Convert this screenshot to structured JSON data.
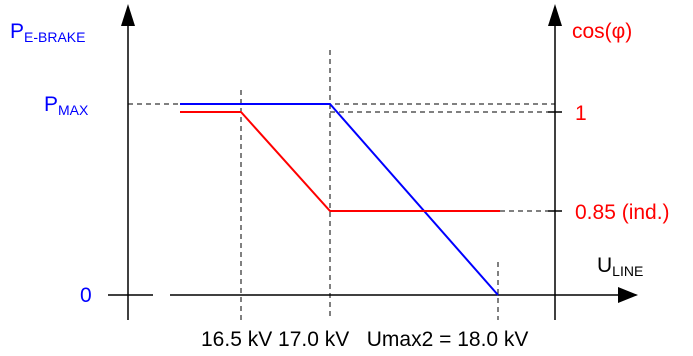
{
  "diagram": {
    "left_axis": {
      "label_main": "P",
      "label_sub": "E-BRAKE",
      "pmax_main": "P",
      "pmax_sub": "MAX",
      "zero_label": "0",
      "color": "#0000ff"
    },
    "right_axis": {
      "label": "cos(φ)",
      "tick_one": "1",
      "tick_low": "0.85 (ind.)",
      "color": "#ff0000"
    },
    "x_axis": {
      "label_main": "U",
      "label_sub": "LINE",
      "ticks_text": "16.5 kV 17.0 kV   Umax2 = 18.0 kV"
    },
    "curves": {
      "power": {
        "color": "#0000ff",
        "points": [
          [
            "start",
            1
          ],
          [
            17.0,
            1
          ],
          [
            18.0,
            0
          ]
        ]
      },
      "cos_phi": {
        "color": "#ff0000",
        "points": [
          [
            "start",
            1
          ],
          [
            16.5,
            1
          ],
          [
            17.0,
            0.85
          ],
          [
            "end",
            0.85
          ]
        ]
      }
    }
  }
}
